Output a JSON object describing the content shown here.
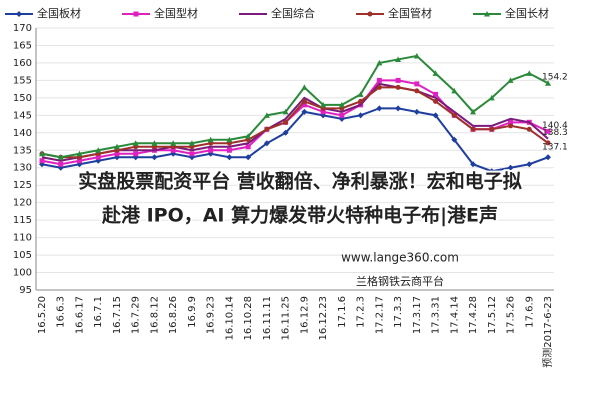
{
  "chart_data": {
    "type": "line",
    "categories": [
      "16.5.20",
      "16.6.3",
      "16.6.17",
      "16.7.1",
      "16.7.15",
      "16.7.29",
      "16.8.12",
      "16.8.26",
      "16.9.9",
      "16.9.23",
      "16.10.14",
      "16.10.28",
      "16.11.11",
      "16.11.25",
      "16.12.9",
      "16.12.23",
      "17.1.6",
      "17.2.3",
      "17.2.17",
      "17.3.3",
      "17.3.17",
      "17.3.31",
      "17.4.14",
      "17.4.28",
      "17.5.12",
      "17.5.26",
      "17.6.9",
      "预测2017-6-23"
    ],
    "series": [
      {
        "name": "全国板材",
        "color": "#1f3f9f",
        "marker": "diamond",
        "values": [
          131,
          130,
          131,
          132,
          133,
          133,
          133,
          134,
          133,
          134,
          133,
          133,
          137,
          140,
          146,
          145,
          144,
          145,
          147,
          147,
          146,
          145,
          138,
          131,
          129,
          130,
          131,
          133
        ]
      },
      {
        "name": "全国型材",
        "color": "#e020c0",
        "marker": "square",
        "values": [
          132,
          131,
          132,
          133,
          134,
          134,
          135,
          135,
          134,
          135,
          135,
          136,
          141,
          143,
          148,
          146,
          145,
          148,
          155,
          155,
          154,
          151,
          145,
          141,
          141,
          143,
          143,
          140.4
        ]
      },
      {
        "name": "全国综合",
        "color": "#7a1a7a",
        "marker": "none",
        "values": [
          133,
          132,
          133,
          134,
          135,
          135,
          135,
          136,
          135,
          136,
          136,
          137,
          141,
          144,
          150,
          147,
          146,
          148,
          154,
          153,
          152,
          150,
          146,
          142,
          142,
          144,
          143,
          138.3
        ]
      },
      {
        "name": "全国管材",
        "color": "#a0302a",
        "marker": "circle",
        "values": [
          134,
          133,
          133,
          134,
          135,
          136,
          136,
          136,
          136,
          137,
          137,
          138,
          141,
          143,
          149,
          147,
          147,
          149,
          153,
          153,
          152,
          149,
          145,
          141,
          141,
          142,
          141,
          137.1
        ]
      },
      {
        "name": "全国长材",
        "color": "#2a8a3a",
        "marker": "triangle",
        "values": [
          134,
          133,
          134,
          135,
          136,
          137,
          137,
          137,
          137,
          138,
          138,
          139,
          145,
          146,
          153,
          148,
          148,
          151,
          160,
          161,
          162,
          157,
          152,
          146,
          150,
          155,
          157,
          154.2
        ]
      }
    ],
    "ylim": [
      95,
      170
    ],
    "yticks": [
      95,
      100,
      105,
      110,
      115,
      120,
      125,
      130,
      135,
      140,
      145,
      150,
      155,
      160,
      165,
      170
    ],
    "grid": true,
    "legend": "top"
  },
  "overlay": {
    "headline": [
      "实盘股票配资平台 营收翻倍、净利暴涨！宏和电子拟",
      "赴港 IPO，AI 算力爆发带火特种电子布|港E声"
    ],
    "watermark_url": "www.lange360.com",
    "watermark_name": "兰格钢铁云商平台"
  }
}
